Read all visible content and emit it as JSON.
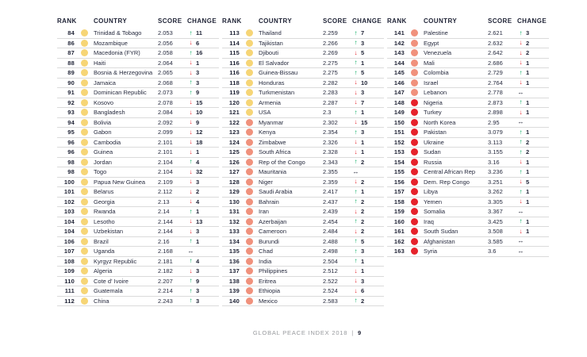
{
  "footer": {
    "title": "GLOBAL PEACE INDEX 2018",
    "separator": "|",
    "page_number": "9"
  },
  "table": {
    "headers": [
      "RANK",
      "COUNTRY",
      "SCORE",
      "CHANGE"
    ],
    "band_colors": {
      "yellow": "#F6D576",
      "salmon": "#F0917C",
      "red": "#E6222B"
    },
    "change_colors": {
      "up": "#00A95C",
      "down": "#E5232B",
      "same": "#1E2235"
    },
    "arrows": {
      "up": "↑",
      "down": "↓",
      "same": "↔"
    },
    "columns": [
      {
        "rows": [
          {
            "rank": "84",
            "country": "Trinidad & Tobago",
            "score": "2.053",
            "dir": "up",
            "change": "11",
            "band": "yellow"
          },
          {
            "rank": "86",
            "country": "Mozambique",
            "score": "2.056",
            "dir": "down",
            "change": "6",
            "band": "yellow"
          },
          {
            "rank": "87",
            "country": "Macedonia (FYR)",
            "score": "2.058",
            "dir": "up",
            "change": "16",
            "band": "yellow"
          },
          {
            "rank": "88",
            "country": "Haiti",
            "score": "2.064",
            "dir": "down",
            "change": "1",
            "band": "yellow"
          },
          {
            "rank": "89",
            "country": "Bosnia & Herzegovina",
            "score": "2.065",
            "dir": "down",
            "change": "3",
            "band": "yellow"
          },
          {
            "rank": "90",
            "country": "Jamaica",
            "score": "2.068",
            "dir": "up",
            "change": "3",
            "band": "yellow"
          },
          {
            "rank": "91",
            "country": "Dominican Republic",
            "score": "2.073",
            "dir": "up",
            "change": "9",
            "band": "yellow"
          },
          {
            "rank": "92",
            "country": "Kosovo",
            "score": "2.078",
            "dir": "down",
            "change": "15",
            "band": "yellow"
          },
          {
            "rank": "93",
            "country": "Bangladesh",
            "score": "2.084",
            "dir": "down",
            "change": "10",
            "band": "yellow"
          },
          {
            "rank": "94",
            "country": "Bolivia",
            "score": "2.092",
            "dir": "down",
            "change": "9",
            "band": "yellow"
          },
          {
            "rank": "95",
            "country": "Gabon",
            "score": "2.099",
            "dir": "down",
            "change": "12",
            "band": "yellow"
          },
          {
            "rank": "96",
            "country": "Cambodia",
            "score": "2.101",
            "dir": "down",
            "change": "18",
            "band": "yellow"
          },
          {
            "rank": "96",
            "country": "Guinea",
            "score": "2.101",
            "dir": "down",
            "change": "1",
            "band": "yellow"
          },
          {
            "rank": "98",
            "country": "Jordan",
            "score": "2.104",
            "dir": "up",
            "change": "4",
            "band": "yellow"
          },
          {
            "rank": "98",
            "country": "Togo",
            "score": "2.104",
            "dir": "down",
            "change": "32",
            "band": "yellow"
          },
          {
            "rank": "100",
            "country": "Papua New Guinea",
            "score": "2.109",
            "dir": "down",
            "change": "3",
            "band": "yellow"
          },
          {
            "rank": "101",
            "country": "Belarus",
            "score": "2.112",
            "dir": "down",
            "change": "2",
            "band": "yellow"
          },
          {
            "rank": "102",
            "country": "Georgia",
            "score": "2.13",
            "dir": "down",
            "change": "4",
            "band": "yellow"
          },
          {
            "rank": "103",
            "country": "Rwanda",
            "score": "2.14",
            "dir": "up",
            "change": "1",
            "band": "yellow"
          },
          {
            "rank": "104",
            "country": "Lesotho",
            "score": "2.144",
            "dir": "down",
            "change": "13",
            "band": "yellow"
          },
          {
            "rank": "104",
            "country": "Uzbekistan",
            "score": "2.144",
            "dir": "down",
            "change": "3",
            "band": "yellow"
          },
          {
            "rank": "106",
            "country": "Brazil",
            "score": "2.16",
            "dir": "up",
            "change": "1",
            "band": "yellow"
          },
          {
            "rank": "107",
            "country": "Uganda",
            "score": "2.168",
            "dir": "same",
            "change": "",
            "band": "yellow"
          },
          {
            "rank": "108",
            "country": "Kyrgyz Republic",
            "score": "2.181",
            "dir": "up",
            "change": "4",
            "band": "yellow"
          },
          {
            "rank": "109",
            "country": "Algeria",
            "score": "2.182",
            "dir": "down",
            "change": "3",
            "band": "yellow"
          },
          {
            "rank": "110",
            "country": "Cote d' Ivoire",
            "score": "2.207",
            "dir": "up",
            "change": "9",
            "band": "yellow"
          },
          {
            "rank": "111",
            "country": "Guatemala",
            "score": "2.214",
            "dir": "up",
            "change": "3",
            "band": "yellow"
          },
          {
            "rank": "112",
            "country": "China",
            "score": "2.243",
            "dir": "up",
            "change": "3",
            "band": "yellow"
          }
        ]
      },
      {
        "rows": [
          {
            "rank": "113",
            "country": "Thailand",
            "score": "2.259",
            "dir": "up",
            "change": "7",
            "band": "yellow"
          },
          {
            "rank": "114",
            "country": "Tajikistan",
            "score": "2.266",
            "dir": "up",
            "change": "3",
            "band": "yellow"
          },
          {
            "rank": "115",
            "country": "Djibouti",
            "score": "2.269",
            "dir": "down",
            "change": "5",
            "band": "yellow"
          },
          {
            "rank": "116",
            "country": "El Salvador",
            "score": "2.275",
            "dir": "up",
            "change": "1",
            "band": "yellow"
          },
          {
            "rank": "116",
            "country": "Guinea-Bissau",
            "score": "2.275",
            "dir": "up",
            "change": "5",
            "band": "yellow"
          },
          {
            "rank": "118",
            "country": "Honduras",
            "score": "2.282",
            "dir": "down",
            "change": "10",
            "band": "yellow"
          },
          {
            "rank": "119",
            "country": "Turkmenistan",
            "score": "2.283",
            "dir": "down",
            "change": "3",
            "band": "yellow"
          },
          {
            "rank": "120",
            "country": "Armenia",
            "score": "2.287",
            "dir": "down",
            "change": "7",
            "band": "yellow"
          },
          {
            "rank": "121",
            "country": "USA",
            "score": "2.3",
            "dir": "up",
            "change": "1",
            "band": "yellow"
          },
          {
            "rank": "122",
            "country": "Myanmar",
            "score": "2.302",
            "dir": "down",
            "change": "15",
            "band": "salmon"
          },
          {
            "rank": "123",
            "country": "Kenya",
            "score": "2.354",
            "dir": "up",
            "change": "3",
            "band": "salmon"
          },
          {
            "rank": "124",
            "country": "Zimbabwe",
            "score": "2.326",
            "dir": "down",
            "change": "1",
            "band": "salmon"
          },
          {
            "rank": "125",
            "country": "South Africa",
            "score": "2.328",
            "dir": "down",
            "change": "1",
            "band": "salmon"
          },
          {
            "rank": "126",
            "country": "Rep of the Congo",
            "score": "2.343",
            "dir": "up",
            "change": "2",
            "band": "salmon"
          },
          {
            "rank": "127",
            "country": "Mauritania",
            "score": "2.355",
            "dir": "same",
            "change": "",
            "band": "salmon"
          },
          {
            "rank": "128",
            "country": "Niger",
            "score": "2.359",
            "dir": "down",
            "change": "2",
            "band": "salmon"
          },
          {
            "rank": "129",
            "country": "Saudi Arabia",
            "score": "2.417",
            "dir": "up",
            "change": "1",
            "band": "salmon"
          },
          {
            "rank": "130",
            "country": "Bahrain",
            "score": "2.437",
            "dir": "up",
            "change": "2",
            "band": "salmon"
          },
          {
            "rank": "131",
            "country": "Iran",
            "score": "2.439",
            "dir": "down",
            "change": "2",
            "band": "salmon"
          },
          {
            "rank": "132",
            "country": "Azerbaijan",
            "score": "2.454",
            "dir": "up",
            "change": "2",
            "band": "salmon"
          },
          {
            "rank": "133",
            "country": "Cameroon",
            "score": "2.484",
            "dir": "down",
            "change": "2",
            "band": "salmon"
          },
          {
            "rank": "134",
            "country": "Burundi",
            "score": "2.488",
            "dir": "up",
            "change": "5",
            "band": "salmon"
          },
          {
            "rank": "135",
            "country": "Chad",
            "score": "2.498",
            "dir": "up",
            "change": "3",
            "band": "salmon"
          },
          {
            "rank": "136",
            "country": "India",
            "score": "2.504",
            "dir": "up",
            "change": "1",
            "band": "salmon"
          },
          {
            "rank": "137",
            "country": "Philippines",
            "score": "2.512",
            "dir": "down",
            "change": "1",
            "band": "salmon"
          },
          {
            "rank": "138",
            "country": "Eritrea",
            "score": "2.522",
            "dir": "down",
            "change": "3",
            "band": "salmon"
          },
          {
            "rank": "139",
            "country": "Ethiopia",
            "score": "2.524",
            "dir": "down",
            "change": "6",
            "band": "salmon"
          },
          {
            "rank": "140",
            "country": "Mexico",
            "score": "2.583",
            "dir": "up",
            "change": "2",
            "band": "salmon"
          }
        ]
      },
      {
        "rows": [
          {
            "rank": "141",
            "country": "Palestine",
            "score": "2.621",
            "dir": "up",
            "change": "3",
            "band": "salmon"
          },
          {
            "rank": "142",
            "country": "Egypt",
            "score": "2.632",
            "dir": "down",
            "change": "2",
            "band": "salmon"
          },
          {
            "rank": "143",
            "country": "Venezuela",
            "score": "2.642",
            "dir": "down",
            "change": "2",
            "band": "salmon"
          },
          {
            "rank": "144",
            "country": "Mali",
            "score": "2.686",
            "dir": "down",
            "change": "1",
            "band": "salmon"
          },
          {
            "rank": "145",
            "country": "Colombia",
            "score": "2.729",
            "dir": "up",
            "change": "1",
            "band": "salmon"
          },
          {
            "rank": "146",
            "country": "Israel",
            "score": "2.764",
            "dir": "down",
            "change": "1",
            "band": "salmon"
          },
          {
            "rank": "147",
            "country": "Lebanon",
            "score": "2.778",
            "dir": "same",
            "change": "",
            "band": "salmon"
          },
          {
            "rank": "148",
            "country": "Nigeria",
            "score": "2.873",
            "dir": "up",
            "change": "1",
            "band": "red"
          },
          {
            "rank": "149",
            "country": "Turkey",
            "score": "2.898",
            "dir": "down",
            "change": "1",
            "band": "red"
          },
          {
            "rank": "150",
            "country": "North Korea",
            "score": "2.95",
            "dir": "same",
            "change": "",
            "band": "red"
          },
          {
            "rank": "151",
            "country": "Pakistan",
            "score": "3.079",
            "dir": "up",
            "change": "1",
            "band": "red"
          },
          {
            "rank": "152",
            "country": "Ukraine",
            "score": "3.113",
            "dir": "up",
            "change": "2",
            "band": "red"
          },
          {
            "rank": "153",
            "country": "Sudan",
            "score": "3.155",
            "dir": "up",
            "change": "2",
            "band": "red"
          },
          {
            "rank": "154",
            "country": "Russia",
            "score": "3.16",
            "dir": "down",
            "change": "1",
            "band": "red"
          },
          {
            "rank": "155",
            "country": "Central African Rep",
            "score": "3.236",
            "dir": "up",
            "change": "1",
            "band": "red"
          },
          {
            "rank": "156",
            "country": "Dem. Rep Congo",
            "score": "3.251",
            "dir": "down",
            "change": "5",
            "band": "red"
          },
          {
            "rank": "157",
            "country": "Libya",
            "score": "3.262",
            "dir": "up",
            "change": "1",
            "band": "red"
          },
          {
            "rank": "158",
            "country": "Yemen",
            "score": "3.305",
            "dir": "down",
            "change": "1",
            "band": "red"
          },
          {
            "rank": "159",
            "country": "Somalia",
            "score": "3.367",
            "dir": "same",
            "change": "",
            "band": "red"
          },
          {
            "rank": "160",
            "country": "Iraq",
            "score": "3.425",
            "dir": "up",
            "change": "1",
            "band": "red"
          },
          {
            "rank": "161",
            "country": "South Sudan",
            "score": "3.508",
            "dir": "down",
            "change": "1",
            "band": "red"
          },
          {
            "rank": "162",
            "country": "Afghanistan",
            "score": "3.585",
            "dir": "same",
            "change": "",
            "band": "red"
          },
          {
            "rank": "163",
            "country": "Syria",
            "score": "3.6",
            "dir": "same",
            "change": "",
            "band": "red"
          }
        ]
      }
    ]
  }
}
